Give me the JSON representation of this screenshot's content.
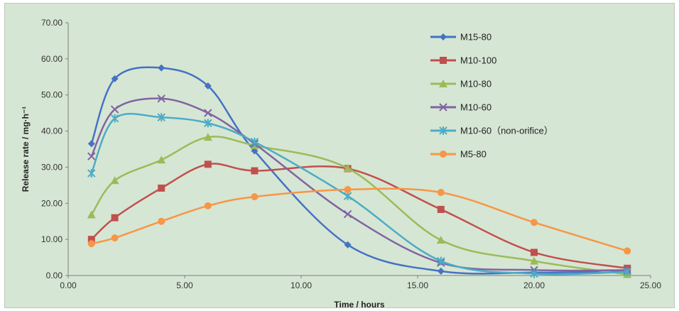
{
  "chart_data": {
    "type": "line",
    "title": "",
    "xlabel": "Time / hours",
    "ylabel": "Release rate / mg·h⁻¹",
    "xlim": [
      0,
      25
    ],
    "ylim": [
      0,
      70
    ],
    "xticks": [
      "0.00",
      "5.00",
      "10.00",
      "15.00",
      "20.00",
      "25.00"
    ],
    "yticks": [
      "0.00",
      "10.00",
      "20.00",
      "30.00",
      "40.00",
      "50.00",
      "60.00",
      "70.00"
    ],
    "grid": false,
    "legend_position": "top-right",
    "smooth": true,
    "series": [
      {
        "name": "M15-80",
        "color": "#4472c4",
        "marker": "diamond",
        "x": [
          1,
          2,
          4,
          6,
          8,
          12,
          16,
          20,
          24
        ],
        "y": [
          36.5,
          54.5,
          57.5,
          52.5,
          34.5,
          8.5,
          1.2,
          0.8,
          1.2
        ]
      },
      {
        "name": "M10-100",
        "color": "#c0504d",
        "marker": "square",
        "x": [
          1,
          2,
          4,
          6,
          8,
          12,
          16,
          20,
          24
        ],
        "y": [
          10.0,
          16.0,
          24.2,
          30.8,
          29.0,
          29.6,
          18.3,
          6.4,
          2.0
        ]
      },
      {
        "name": "M10-80",
        "color": "#9bbb59",
        "marker": "triangle",
        "x": [
          1,
          2,
          4,
          6,
          8,
          12,
          16,
          20,
          24
        ],
        "y": [
          16.8,
          26.3,
          32.0,
          38.3,
          36.0,
          29.7,
          9.8,
          4.0,
          0.3
        ]
      },
      {
        "name": "M10-60",
        "color": "#8064a2",
        "marker": "x",
        "x": [
          1,
          2,
          4,
          6,
          8,
          12,
          16,
          20,
          24
        ],
        "y": [
          33.0,
          46.0,
          49.0,
          45.0,
          36.5,
          17.0,
          3.5,
          1.5,
          1.5
        ]
      },
      {
        "name": "M10-60（non-orifice）",
        "color": "#4bacc6",
        "marker": "star",
        "x": [
          1,
          2,
          4,
          6,
          8,
          12,
          16,
          20,
          24
        ],
        "y": [
          28.3,
          43.5,
          43.8,
          42.2,
          37.0,
          22.0,
          4.0,
          0.5,
          1.0
        ]
      },
      {
        "name": "M5-80",
        "color": "#f79646",
        "marker": "circle",
        "x": [
          1,
          2,
          4,
          6,
          8,
          12,
          16,
          20,
          24
        ],
        "y": [
          8.8,
          10.4,
          15.0,
          19.3,
          21.8,
          23.8,
          23.0,
          14.7,
          6.8
        ]
      }
    ]
  }
}
